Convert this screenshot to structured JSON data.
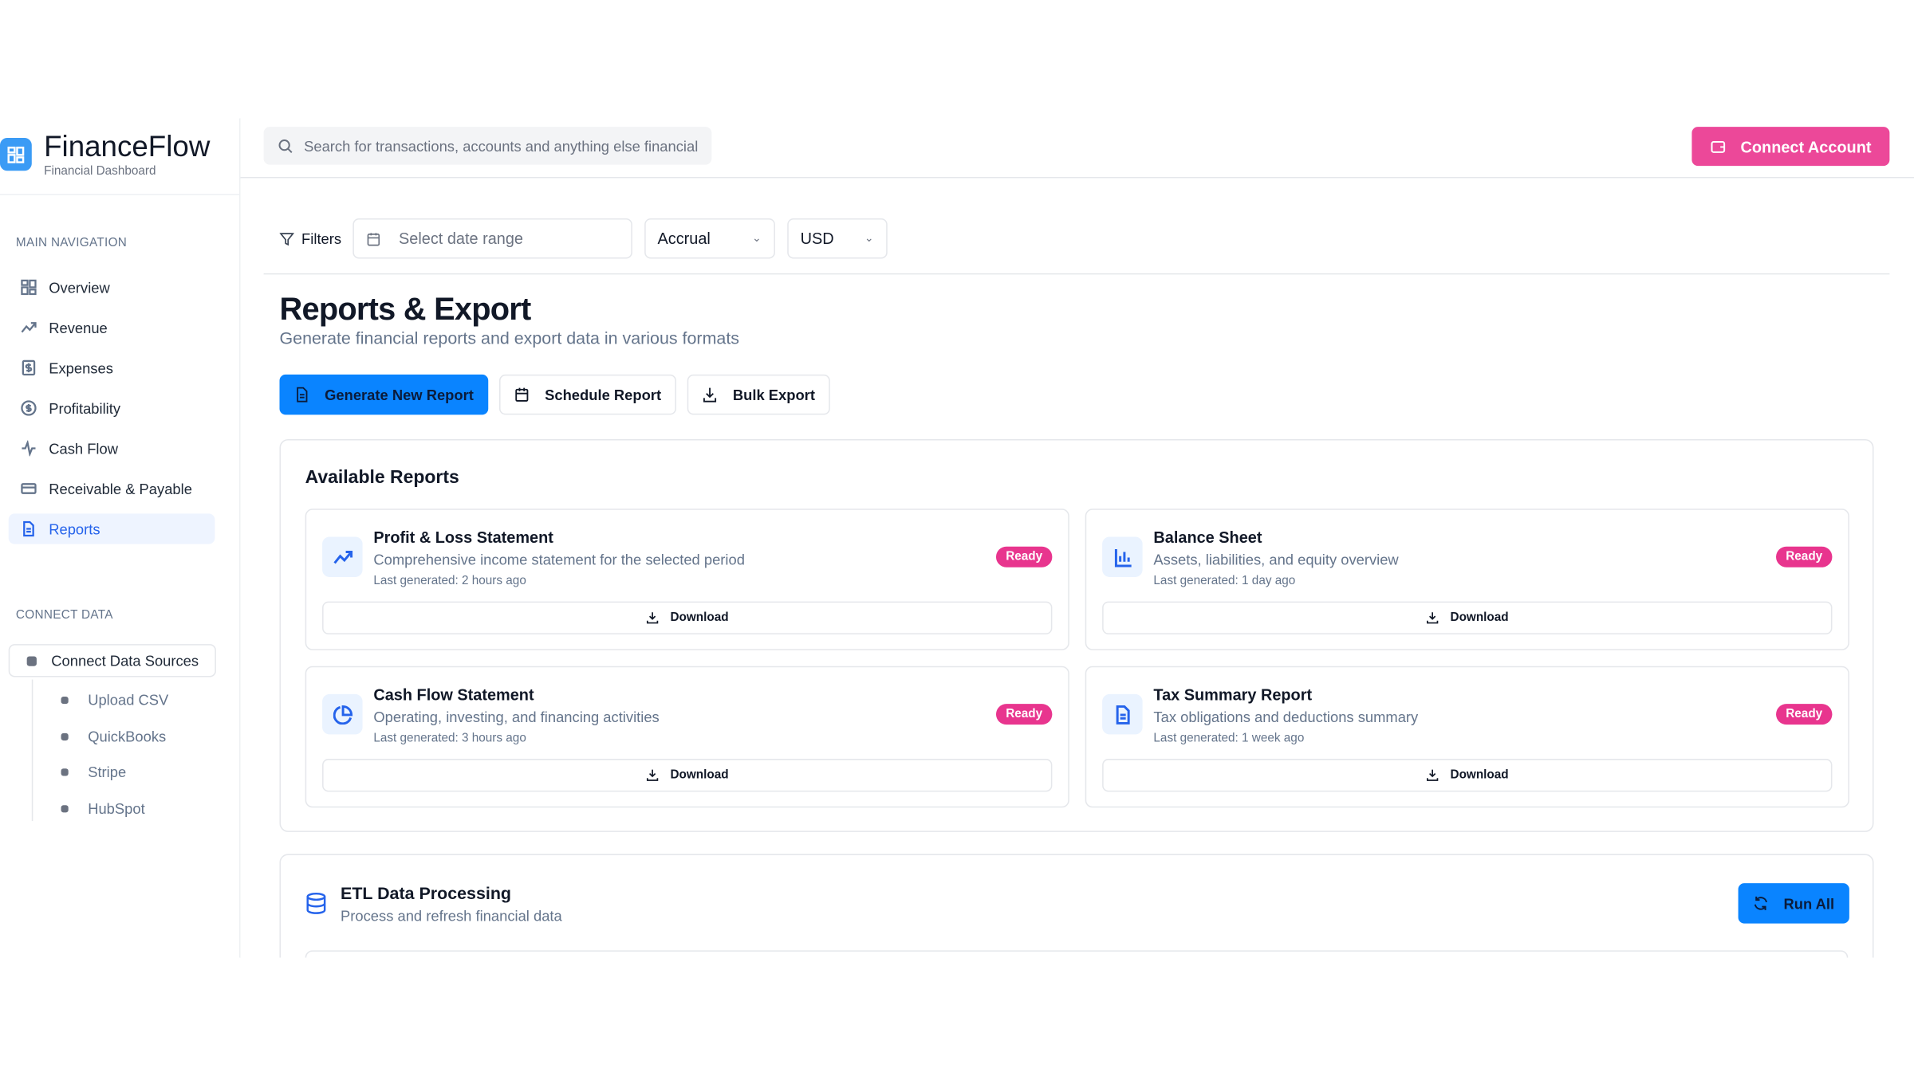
{
  "brand": {
    "title": "FinanceFlow",
    "subtitle": "Financial Dashboard",
    "accent": "#3b9bf5"
  },
  "sidebar": {
    "main_section": "MAIN NAVIGATION",
    "items": [
      {
        "label": "Overview",
        "icon": "grid-icon"
      },
      {
        "label": "Revenue",
        "icon": "trending-up-icon"
      },
      {
        "label": "Expenses",
        "icon": "receipt-dollar-icon"
      },
      {
        "label": "Profitability",
        "icon": "dollar-circle-icon"
      },
      {
        "label": "Cash Flow",
        "icon": "activity-icon"
      },
      {
        "label": "Receivable & Payable",
        "icon": "credit-card-icon"
      },
      {
        "label": "Reports",
        "icon": "file-text-icon",
        "active": true
      }
    ],
    "connect_section": "CONNECT DATA",
    "connect_label": "Connect Data Sources",
    "sources": [
      "Upload CSV",
      "QuickBooks",
      "Stripe",
      "HubSpot"
    ]
  },
  "header": {
    "search_placeholder": "Search for transactions, accounts and anything else financial",
    "connect_label": "Connect Account",
    "connect_color": "#ec4899"
  },
  "filters": {
    "label": "Filters",
    "date_placeholder": "Select date range",
    "basis": "Accrual",
    "currency": "USD"
  },
  "page": {
    "title": "Reports & Export",
    "subtitle": "Generate financial reports and export data in various formats"
  },
  "actions": {
    "generate": "Generate New Report",
    "schedule": "Schedule Report",
    "bulk": "Bulk Export"
  },
  "reports": {
    "title": "Available Reports",
    "download_label": "Download",
    "items": [
      {
        "title": "Profit & Loss Statement",
        "desc": "Comprehensive income statement for the selected period",
        "generated": "Last generated: 2 hours ago",
        "status": "Ready",
        "icon": "trending-up-icon"
      },
      {
        "title": "Balance Sheet",
        "desc": "Assets, liabilities, and equity overview",
        "generated": "Last generated: 1 day ago",
        "status": "Ready",
        "icon": "bar-chart-icon"
      },
      {
        "title": "Cash Flow Statement",
        "desc": "Operating, investing, and financing activities",
        "generated": "Last generated: 3 hours ago",
        "status": "Ready",
        "icon": "pie-chart-icon"
      },
      {
        "title": "Tax Summary Report",
        "desc": "Tax obligations and deductions summary",
        "generated": "Last generated: 1 week ago",
        "status": "Ready",
        "icon": "file-text-icon"
      }
    ]
  },
  "etl": {
    "title": "ETL Data Processing",
    "subtitle": "Process and refresh financial data",
    "run_label": "Run All"
  }
}
